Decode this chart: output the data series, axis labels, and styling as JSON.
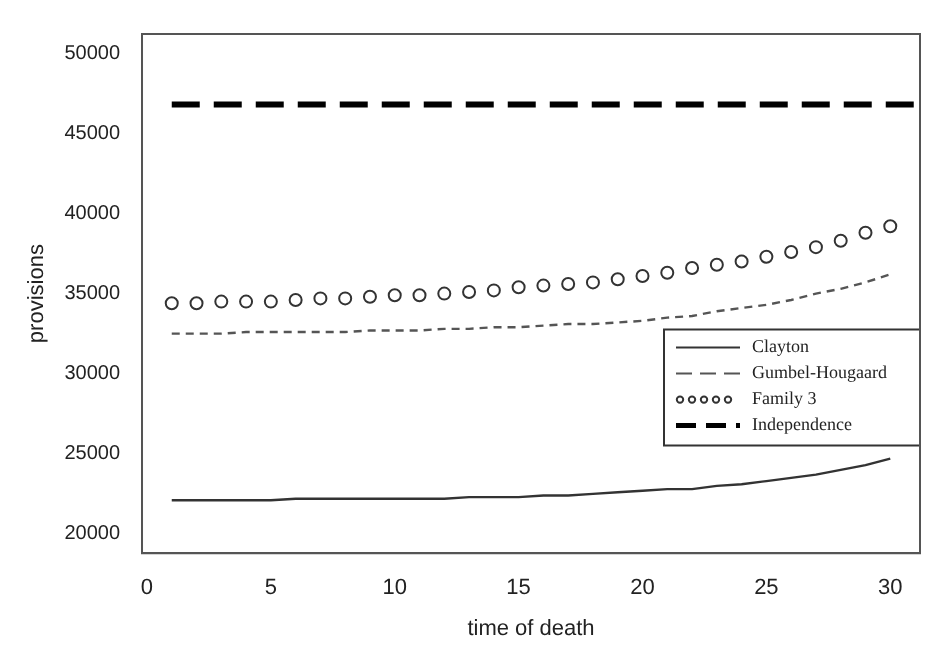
{
  "chart_data": {
    "type": "line",
    "xlabel": "time of death",
    "ylabel": "provisions",
    "xlim": [
      -0.2,
      31.2
    ],
    "xticks": [
      0,
      5,
      10,
      15,
      20,
      25,
      30
    ],
    "ylim": [
      18800,
      51200
    ],
    "yticks": [
      20000,
      25000,
      30000,
      35000,
      40000,
      45000,
      50000
    ],
    "grid": false,
    "legend": "right",
    "x": [
      1,
      2,
      3,
      4,
      5,
      6,
      7,
      8,
      9,
      10,
      11,
      12,
      13,
      14,
      15,
      16,
      17,
      18,
      19,
      20,
      21,
      22,
      23,
      24,
      25,
      26,
      27,
      28,
      29,
      30
    ],
    "series": [
      {
        "name": "Clayton",
        "color": "#333333",
        "line_style": "solid",
        "marker": "none",
        "values": [
          22100,
          22100,
          22100,
          22100,
          22100,
          22200,
          22200,
          22200,
          22200,
          22200,
          22200,
          22200,
          22300,
          22300,
          22300,
          22400,
          22400,
          22500,
          22600,
          22700,
          22800,
          22800,
          23000,
          23100,
          23300,
          23500,
          23700,
          24000,
          24300,
          24700
        ]
      },
      {
        "name": "Gumbel-Hougaard",
        "color": "#555555",
        "line_style": "dashed",
        "marker": "none",
        "values": [
          32500,
          32500,
          32500,
          32600,
          32600,
          32600,
          32600,
          32600,
          32700,
          32700,
          32700,
          32800,
          32800,
          32900,
          32900,
          33000,
          33100,
          33100,
          33200,
          33300,
          33500,
          33600,
          33900,
          34100,
          34300,
          34600,
          35000,
          35300,
          35700,
          36200
        ]
      },
      {
        "name": "Family 3",
        "type": "scatter",
        "color": "#333333",
        "marker": "circle",
        "values": [
          34400,
          34400,
          34500,
          34500,
          34500,
          34600,
          34700,
          34700,
          34800,
          34900,
          34900,
          35000,
          35100,
          35200,
          35400,
          35500,
          35600,
          35700,
          35900,
          36100,
          36300,
          36600,
          36800,
          37000,
          37300,
          37600,
          37900,
          38300,
          38800,
          39200
        ]
      },
      {
        "name": "Independence",
        "color": "#000000",
        "line_style": "dashed",
        "marker": "none",
        "x": [
          1,
          31.2
        ],
        "values": [
          46800,
          46800
        ]
      }
    ]
  }
}
